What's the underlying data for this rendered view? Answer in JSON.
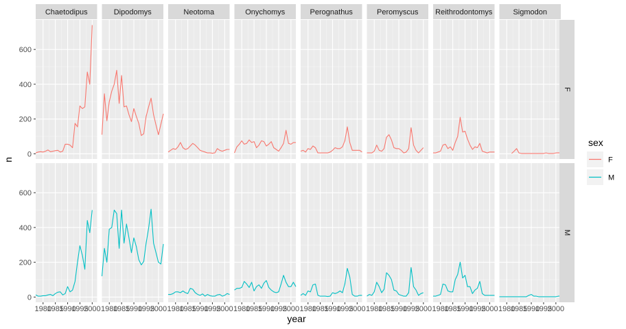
{
  "chart_data": {
    "type": "line",
    "facet_cols": [
      "Chaetodipus",
      "Dipodomys",
      "Neotoma",
      "Onychomys",
      "Perognathus",
      "Peromyscus",
      "Reithrodontomys",
      "Sigmodon"
    ],
    "facet_rows": [
      "F",
      "M"
    ],
    "xlabel": "year",
    "ylabel": "n",
    "xlim": [
      1977,
      2002
    ],
    "ylim": [
      -30,
      770
    ],
    "x_ticks": [
      1980,
      1985,
      1990,
      1995,
      2000
    ],
    "x_tick_labels": [
      "1980",
      "1985",
      "1990",
      "1995",
      "2000"
    ],
    "y_ticks": [
      0,
      200,
      400,
      600
    ],
    "y_tick_labels": [
      "0",
      "200",
      "400",
      "600"
    ],
    "grid": true,
    "legend": {
      "title": "sex",
      "position": "right",
      "items": [
        {
          "label": "F",
          "color": "#F8766D"
        },
        {
          "label": "M",
          "color": "#00BFC4"
        }
      ]
    },
    "series": [
      {
        "genus": "Chaetodipus",
        "sex": "F",
        "x": [
          1977,
          1978,
          1979,
          1980,
          1981,
          1982,
          1983,
          1984,
          1985,
          1986,
          1987,
          1988,
          1989,
          1990,
          1991,
          1992,
          1993,
          1994,
          1995,
          1996,
          1997,
          1998,
          1999,
          2000,
          2001,
          2002
        ],
        "y": [
          5,
          10,
          12,
          10,
          15,
          22,
          12,
          15,
          18,
          20,
          10,
          15,
          55,
          55,
          50,
          35,
          175,
          155,
          275,
          260,
          270,
          470,
          400,
          740,
          null,
          null
        ]
      },
      {
        "genus": "Chaetodipus",
        "sex": "M",
        "x": [
          1977,
          1978,
          1979,
          1980,
          1981,
          1982,
          1983,
          1984,
          1985,
          1986,
          1987,
          1988,
          1989,
          1990,
          1991,
          1992,
          1993,
          1994,
          1995,
          1996,
          1997,
          1998,
          1999,
          2000
        ],
        "y": [
          12,
          5,
          5,
          8,
          8,
          12,
          15,
          8,
          20,
          28,
          30,
          12,
          20,
          60,
          30,
          40,
          90,
          200,
          295,
          240,
          160,
          440,
          370,
          500
        ]
      },
      {
        "genus": "Dipodomys",
        "sex": "F",
        "x": [
          1977,
          1978,
          1979,
          1980,
          1981,
          1982,
          1983,
          1984,
          1985,
          1986,
          1987,
          1988,
          1989,
          1990,
          1991,
          1992,
          1993,
          1994,
          1995,
          1996,
          1997,
          1998,
          1999,
          2000,
          2001,
          2002
        ],
        "y": [
          110,
          345,
          190,
          300,
          360,
          400,
          480,
          290,
          450,
          270,
          275,
          225,
          185,
          260,
          215,
          175,
          105,
          115,
          215,
          270,
          320,
          225,
          165,
          110,
          170,
          230
        ]
      },
      {
        "genus": "Dipodomys",
        "sex": "M",
        "x": [
          1977,
          1978,
          1979,
          1980,
          1981,
          1982,
          1983,
          1984,
          1985,
          1986,
          1987,
          1988,
          1989,
          1990,
          1991,
          1992,
          1993,
          1994,
          1995,
          1996,
          1997,
          1998,
          1999,
          2000,
          2001,
          2002
        ],
        "y": [
          120,
          280,
          200,
          390,
          400,
          500,
          480,
          280,
          500,
          310,
          420,
          340,
          255,
          340,
          290,
          215,
          185,
          205,
          310,
          395,
          505,
          310,
          255,
          200,
          190,
          305
        ]
      },
      {
        "genus": "Neotoma",
        "sex": "F",
        "x": [
          1977,
          1978,
          1979,
          1980,
          1981,
          1982,
          1983,
          1984,
          1985,
          1986,
          1987,
          1988,
          1989,
          1990,
          1991,
          1992,
          1993,
          1994,
          1995,
          1996,
          1997,
          1998,
          1999,
          2000,
          2001,
          2002
        ],
        "y": [
          10,
          20,
          30,
          25,
          40,
          65,
          35,
          25,
          30,
          45,
          60,
          50,
          35,
          20,
          15,
          10,
          5,
          5,
          3,
          5,
          30,
          20,
          15,
          20,
          25,
          25
        ]
      },
      {
        "genus": "Neotoma",
        "sex": "M",
        "x": [
          1977,
          1978,
          1979,
          1980,
          1981,
          1982,
          1983,
          1984,
          1985,
          1986,
          1987,
          1988,
          1989,
          1990,
          1991,
          1992,
          1993,
          1994,
          1995,
          1996,
          1997,
          1998,
          1999,
          2000,
          2001,
          2002
        ],
        "y": [
          15,
          15,
          20,
          30,
          30,
          25,
          35,
          25,
          20,
          50,
          45,
          25,
          15,
          10,
          18,
          5,
          15,
          8,
          5,
          5,
          12,
          15,
          5,
          10,
          20,
          15
        ]
      },
      {
        "genus": "Onychomys",
        "sex": "F",
        "x": [
          1977,
          1978,
          1979,
          1980,
          1981,
          1982,
          1983,
          1984,
          1985,
          1986,
          1987,
          1988,
          1989,
          1990,
          1991,
          1992,
          1993,
          1994,
          1995,
          1996,
          1997,
          1998,
          1999,
          2000,
          2001,
          2002
        ],
        "y": [
          5,
          40,
          55,
          75,
          55,
          60,
          80,
          65,
          70,
          35,
          50,
          75,
          70,
          45,
          55,
          70,
          35,
          25,
          15,
          35,
          60,
          135,
          60,
          55,
          65,
          65
        ]
      },
      {
        "genus": "Onychomys",
        "sex": "M",
        "x": [
          1977,
          1978,
          1979,
          1980,
          1981,
          1982,
          1983,
          1984,
          1985,
          1986,
          1987,
          1988,
          1989,
          1990,
          1991,
          1992,
          1993,
          1994,
          1995,
          1996,
          1997,
          1998,
          1999,
          2000,
          2001,
          2002
        ],
        "y": [
          40,
          50,
          50,
          55,
          90,
          75,
          55,
          85,
          35,
          60,
          70,
          50,
          80,
          95,
          55,
          40,
          30,
          25,
          30,
          75,
          125,
          85,
          60,
          60,
          85,
          60
        ]
      },
      {
        "genus": "Perognathus",
        "sex": "F",
        "x": [
          1977,
          1978,
          1979,
          1980,
          1981,
          1982,
          1983,
          1984,
          1985,
          1986,
          1987,
          1988,
          1989,
          1990,
          1991,
          1992,
          1993,
          1994,
          1995,
          1996,
          1997,
          1998,
          1999,
          2000,
          2001,
          2002
        ],
        "y": [
          15,
          20,
          10,
          30,
          25,
          45,
          35,
          5,
          5,
          5,
          5,
          5,
          10,
          20,
          35,
          30,
          30,
          40,
          75,
          155,
          65,
          20,
          20,
          20,
          20,
          10
        ]
      },
      {
        "genus": "Perognathus",
        "sex": "M",
        "x": [
          1977,
          1978,
          1979,
          1980,
          1981,
          1982,
          1983,
          1984,
          1985,
          1986,
          1987,
          1988,
          1989,
          1990,
          1991,
          1992,
          1993,
          1994,
          1995,
          1996,
          1997,
          1998,
          1999,
          2000,
          2001,
          2002
        ],
        "y": [
          10,
          20,
          10,
          35,
          30,
          70,
          75,
          10,
          5,
          5,
          5,
          3,
          5,
          25,
          20,
          25,
          35,
          25,
          75,
          165,
          115,
          15,
          5,
          5,
          10,
          10
        ]
      },
      {
        "genus": "Peromyscus",
        "sex": "F",
        "x": [
          1977,
          1978,
          1979,
          1980,
          1981,
          1982,
          1983,
          1984,
          1985,
          1986,
          1987,
          1988,
          1989,
          1990,
          1991,
          1992,
          1993,
          1994,
          1995,
          1996,
          1997,
          1998,
          1999,
          2000,
          2001,
          2002
        ],
        "y": [
          5,
          5,
          5,
          15,
          50,
          20,
          15,
          30,
          95,
          110,
          80,
          35,
          30,
          30,
          20,
          5,
          10,
          30,
          150,
          50,
          20,
          5,
          20,
          35,
          null,
          null
        ]
      },
      {
        "genus": "Peromyscus",
        "sex": "M",
        "x": [
          1977,
          1978,
          1979,
          1980,
          1981,
          1982,
          1983,
          1984,
          1985,
          1986,
          1987,
          1988,
          1989,
          1990,
          1991,
          1992,
          1993,
          1994,
          1995,
          1996,
          1997,
          1998,
          1999,
          2000,
          2001,
          2002
        ],
        "y": [
          5,
          15,
          10,
          30,
          85,
          60,
          25,
          45,
          140,
          125,
          100,
          40,
          35,
          15,
          10,
          5,
          5,
          25,
          170,
          60,
          40,
          10,
          20,
          25,
          null,
          null
        ]
      },
      {
        "genus": "Reithrodontomys",
        "sex": "F",
        "x": [
          1977,
          1978,
          1979,
          1980,
          1981,
          1982,
          1983,
          1984,
          1985,
          1986,
          1987,
          1988,
          1989,
          1990,
          1991,
          1992,
          1993,
          1994,
          1995,
          1996,
          1997,
          1998,
          1999,
          2000,
          2001,
          2002
        ],
        "y": [
          5,
          5,
          10,
          15,
          50,
          55,
          30,
          40,
          20,
          65,
          100,
          210,
          125,
          130,
          85,
          50,
          25,
          40,
          35,
          60,
          15,
          10,
          5,
          10,
          10,
          10
        ]
      },
      {
        "genus": "Reithrodontomys",
        "sex": "M",
        "x": [
          1977,
          1978,
          1979,
          1980,
          1981,
          1982,
          1983,
          1984,
          1985,
          1986,
          1987,
          1988,
          1989,
          1990,
          1991,
          1992,
          1993,
          1994,
          1995,
          1996,
          1997,
          1998,
          1999,
          2000,
          2001,
          2002
        ],
        "y": [
          5,
          5,
          10,
          15,
          75,
          70,
          35,
          30,
          30,
          100,
          130,
          200,
          110,
          125,
          60,
          60,
          20,
          40,
          50,
          90,
          20,
          10,
          10,
          10,
          10,
          10
        ]
      },
      {
        "genus": "Sigmodon",
        "sex": "F",
        "x": [
          1982,
          1983,
          1984,
          1985,
          1986,
          1987,
          1988,
          1989,
          1990,
          1991,
          1992,
          1993,
          1994,
          1995,
          1996,
          1997,
          1998,
          1999,
          2000,
          2001,
          2002
        ],
        "y": [
          2,
          15,
          30,
          5,
          2,
          2,
          2,
          2,
          2,
          2,
          2,
          2,
          2,
          2,
          5,
          2,
          2,
          2,
          5,
          5,
          5
        ]
      },
      {
        "genus": "Sigmodon",
        "sex": "M",
        "x": [
          1977,
          1978,
          1979,
          1980,
          1981,
          1982,
          1983,
          1984,
          1985,
          1986,
          1987,
          1988,
          1989,
          1990,
          1991,
          1992,
          1993,
          1994,
          1995,
          1996,
          1997,
          1998,
          1999,
          2000,
          2001,
          2002
        ],
        "y": [
          2,
          2,
          2,
          2,
          2,
          2,
          2,
          2,
          2,
          2,
          2,
          2,
          10,
          15,
          5,
          5,
          2,
          2,
          2,
          2,
          2,
          2,
          2,
          2,
          5,
          5
        ]
      }
    ]
  }
}
